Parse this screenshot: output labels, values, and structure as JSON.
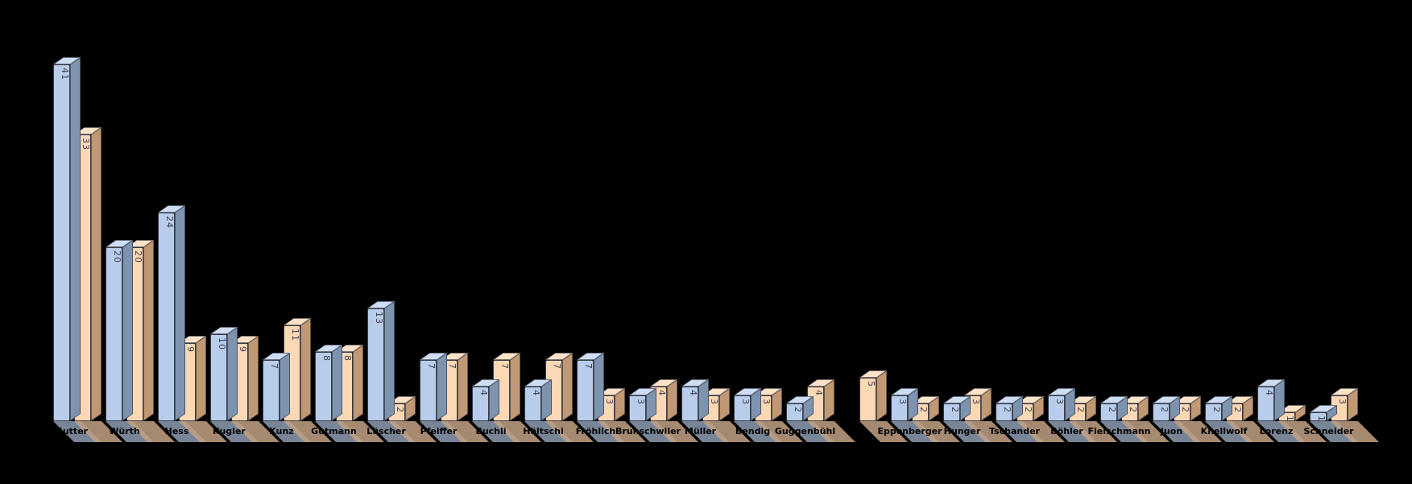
{
  "chart_data": {
    "type": "bar",
    "projection": "3d",
    "title": "",
    "xlabel": "",
    "ylabel": "",
    "legend": "none",
    "background": "transparent-black",
    "value_labels": "rotated-90-at-bar-top",
    "gridline_interval": 5,
    "ylim": [
      0,
      45
    ],
    "categories": [
      "Sutter",
      "Würth",
      "Hess",
      "Kugler",
      "Kunz",
      "Gutmann",
      "Lüscher",
      "Pfeiffer",
      "Buchli",
      "Höltschi",
      "Fröhlich",
      "Brunschwiler",
      "Müller",
      "Bendig",
      "Guggenbühl",
      "",
      "Eppenberger",
      "Hunger",
      "Tschander",
      "Böhler",
      "Fleischmann",
      "Juon",
      "Knellwolf",
      "Lorenz",
      "Schneider"
    ],
    "series": [
      {
        "name": "blue-series",
        "front_color": "#b8cdec",
        "side_color": "#7e93ae",
        "top_color": "#cdddf4",
        "shadow_color": "#8d9cb2",
        "values": [
          41,
          20,
          24,
          10,
          7,
          8,
          13,
          7,
          4,
          4,
          7,
          3,
          4,
          3,
          2,
          0,
          3,
          2,
          2,
          3,
          2,
          2,
          2,
          4,
          1
        ]
      },
      {
        "name": "orange-series",
        "front_color": "#fcd8b5",
        "side_color": "#c09873",
        "top_color": "#fde4c8",
        "shadow_color": "#c2a184",
        "values": [
          33,
          20,
          9,
          9,
          11,
          8,
          2,
          7,
          7,
          7,
          3,
          4,
          3,
          3,
          4,
          5,
          2,
          3,
          2,
          2,
          2,
          2,
          2,
          1,
          3
        ]
      }
    ]
  }
}
